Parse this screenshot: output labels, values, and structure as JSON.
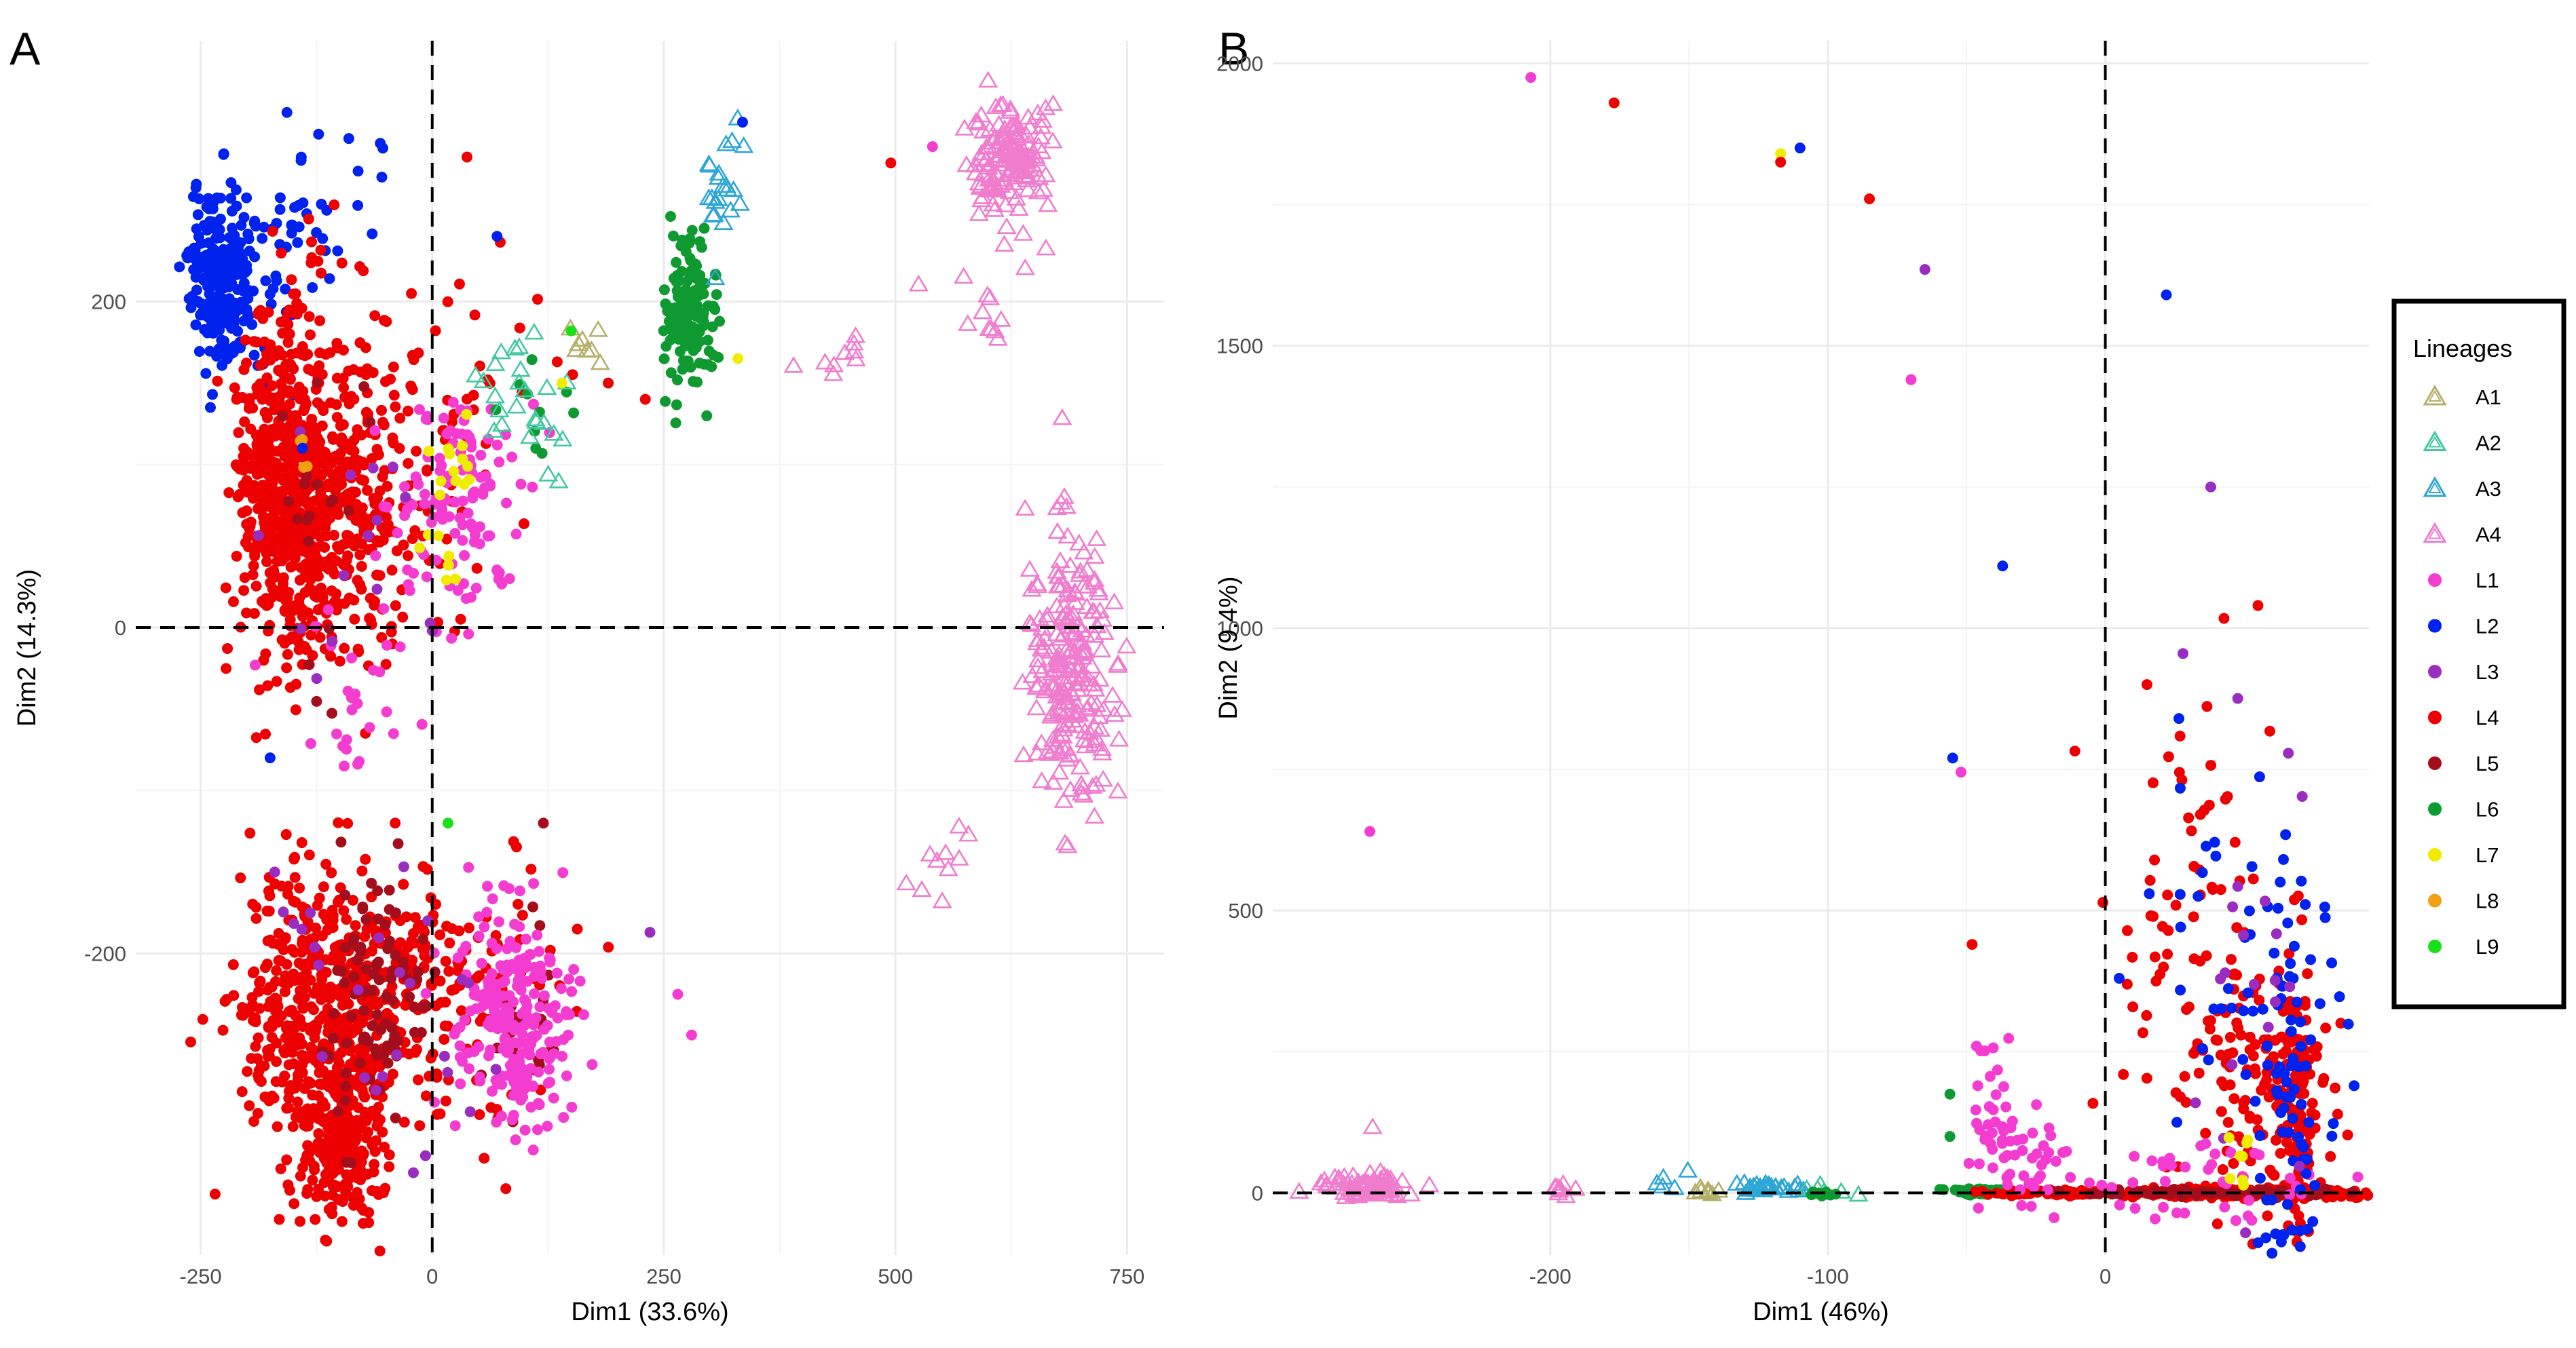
{
  "chart_data": [
    {
      "panel": "A",
      "type": "scatter",
      "xlabel": "Dim1 (33.6%)",
      "ylabel": "Dim2 (14.3%)",
      "xlim": [
        -320,
        790
      ],
      "ylim": [
        -385,
        360
      ],
      "xticks": [
        -250,
        0,
        250,
        500,
        750
      ],
      "yticks": [
        -200,
        0,
        200
      ],
      "xtick_labels": [
        "-250",
        "0",
        "250",
        "500",
        "750"
      ],
      "ytick_labels": [
        "-200",
        "0",
        "200"
      ],
      "reference_lines": {
        "x": 0,
        "y": 0
      },
      "clusters": [
        {
          "series": "L2",
          "cx": -225,
          "cy": 215,
          "sx": 18,
          "sy": 28,
          "n": 260
        },
        {
          "series": "L2",
          "cx": -140,
          "cy": 235,
          "sx": 40,
          "sy": 30,
          "n": 45
        },
        {
          "series": "L4",
          "cx": -160,
          "cy": 90,
          "sx": 26,
          "sy": 55,
          "n": 500
        },
        {
          "series": "L4",
          "cx": -110,
          "cy": 70,
          "sx": 40,
          "sy": 45,
          "n": 260
        },
        {
          "series": "L4",
          "cx": -60,
          "cy": 100,
          "sx": 45,
          "sy": 60,
          "n": 110
        },
        {
          "series": "L4",
          "cx": -130,
          "cy": -230,
          "sx": 40,
          "sy": 40,
          "n": 380
        },
        {
          "series": "L4",
          "cx": -100,
          "cy": -310,
          "sx": 25,
          "sy": 30,
          "n": 280
        },
        {
          "series": "L4",
          "cx": -40,
          "cy": -220,
          "sx": 40,
          "sy": 35,
          "n": 160
        },
        {
          "series": "L4",
          "cx": 70,
          "cy": -220,
          "sx": 40,
          "sy": 45,
          "n": 60
        },
        {
          "series": "L4",
          "cx": 30,
          "cy": 140,
          "sx": 60,
          "sy": 50,
          "n": 40
        },
        {
          "series": "L5",
          "cx": -60,
          "cy": -230,
          "sx": 25,
          "sy": 40,
          "n": 90
        },
        {
          "series": "L5",
          "cx": 100,
          "cy": -240,
          "sx": 25,
          "sy": 40,
          "n": 25
        },
        {
          "series": "L5",
          "cx": -120,
          "cy": 70,
          "sx": 30,
          "sy": 50,
          "n": 20
        },
        {
          "series": "L1",
          "cx": 90,
          "cy": -240,
          "sx": 30,
          "sy": 35,
          "n": 240
        },
        {
          "series": "L1",
          "cx": 30,
          "cy": 80,
          "sx": 35,
          "sy": 40,
          "n": 120
        },
        {
          "series": "L1",
          "cx": -90,
          "cy": -40,
          "sx": 30,
          "sy": 30,
          "n": 25
        },
        {
          "series": "L3",
          "cx": -50,
          "cy": -230,
          "sx": 60,
          "sy": 50,
          "n": 25
        },
        {
          "series": "L3",
          "cx": -90,
          "cy": 60,
          "sx": 50,
          "sy": 40,
          "n": 15
        },
        {
          "series": "L7",
          "cx": 20,
          "cy": 70,
          "sx": 10,
          "sy": 25,
          "n": 20
        },
        {
          "series": "L8",
          "cx": -140,
          "cy": 105,
          "sx": 3,
          "sy": 6,
          "n": 4
        },
        {
          "series": "L6",
          "cx": 275,
          "cy": 190,
          "sx": 15,
          "sy": 25,
          "n": 140
        },
        {
          "series": "L6",
          "cx": 120,
          "cy": 140,
          "sx": 40,
          "sy": 30,
          "n": 10
        },
        {
          "series": "A4",
          "cx": 625,
          "cy": 285,
          "sx": 22,
          "sy": 18,
          "n": 150
        },
        {
          "series": "A4",
          "cx": 690,
          "cy": -30,
          "sx": 22,
          "sy": 35,
          "n": 220
        },
        {
          "series": "A4",
          "cx": 600,
          "cy": 195,
          "sx": 15,
          "sy": 15,
          "n": 10
        },
        {
          "series": "A4",
          "cx": 445,
          "cy": 165,
          "sx": 12,
          "sy": 10,
          "n": 8
        },
        {
          "series": "A4",
          "cx": 545,
          "cy": -145,
          "sx": 20,
          "sy": 20,
          "n": 10
        },
        {
          "series": "A4",
          "cx": 675,
          "cy": 75,
          "sx": 5,
          "sy": 10,
          "n": 6
        },
        {
          "series": "A3",
          "cx": 310,
          "cy": 265,
          "sx": 12,
          "sy": 20,
          "n": 22
        },
        {
          "series": "A2",
          "cx": 95,
          "cy": 130,
          "sx": 25,
          "sy": 25,
          "n": 25
        },
        {
          "series": "A1",
          "cx": 160,
          "cy": 178,
          "sx": 15,
          "sy": 10,
          "n": 8
        }
      ],
      "points": [
        {
          "series": "L2",
          "x": -90,
          "y": 300
        },
        {
          "series": "L2",
          "x": 335,
          "y": 310
        },
        {
          "series": "L2",
          "x": 70,
          "y": 240
        },
        {
          "series": "L2",
          "x": -175,
          "y": -80
        },
        {
          "series": "L2",
          "x": -140,
          "y": 110
        },
        {
          "series": "L2",
          "x": -80,
          "y": 280
        },
        {
          "series": "L4",
          "x": 495,
          "y": 285
        },
        {
          "series": "L4",
          "x": 190,
          "y": 150
        },
        {
          "series": "L4",
          "x": 230,
          "y": 140
        },
        {
          "series": "L4",
          "x": -40,
          "y": -120
        },
        {
          "series": "L1",
          "x": 540,
          "y": 295
        },
        {
          "series": "L1",
          "x": 265,
          "y": -225
        },
        {
          "series": "L1",
          "x": 280,
          "y": -250
        },
        {
          "series": "L1",
          "x": -95,
          "y": -85
        },
        {
          "series": "L3",
          "x": 235,
          "y": -187
        },
        {
          "series": "L3",
          "x": -170,
          "y": -150
        },
        {
          "series": "L7",
          "x": 330,
          "y": 165
        },
        {
          "series": "L7",
          "x": 140,
          "y": 150
        },
        {
          "series": "L9",
          "x": 150,
          "y": 182
        },
        {
          "series": "L9",
          "x": 17,
          "y": -120
        },
        {
          "series": "L5",
          "x": 120,
          "y": -120
        },
        {
          "series": "A4",
          "x": 600,
          "y": 335
        },
        {
          "series": "A4",
          "x": 525,
          "y": 210
        },
        {
          "series": "A4",
          "x": 390,
          "y": 160
        },
        {
          "series": "A4",
          "x": 680,
          "y": 128
        },
        {
          "series": "A4",
          "x": 640,
          "y": 220
        },
        {
          "series": "A4",
          "x": 645,
          "y": 35
        }
      ]
    },
    {
      "panel": "B",
      "type": "scatter",
      "xlabel": "Dim1 (46%)",
      "ylabel": "Dim2 (9.4%)",
      "xlim": [
        -300,
        95
      ],
      "ylim": [
        -110,
        2040
      ],
      "xticks": [
        -200,
        -100,
        0
      ],
      "yticks": [
        0,
        500,
        1000,
        1500,
        2000
      ],
      "xtick_labels": [
        "-200",
        "-100",
        "0"
      ],
      "ytick_labels": [
        "0",
        "500",
        "1000",
        "1500",
        "2000"
      ],
      "reference_lines": {
        "x": 0,
        "y": 0
      },
      "clusters": [
        {
          "series": "A4",
          "cx": -265,
          "cy": 8,
          "sx": 7,
          "sy": 10,
          "n": 90
        },
        {
          "series": "A4",
          "cx": -198,
          "cy": 8,
          "sx": 3,
          "sy": 5,
          "n": 10
        },
        {
          "series": "A3",
          "cx": -122,
          "cy": 8,
          "sx": 6,
          "sy": 5,
          "n": 30
        },
        {
          "series": "A3",
          "cx": -157,
          "cy": 15,
          "sx": 3,
          "sy": 10,
          "n": 5
        },
        {
          "series": "A1",
          "cx": -143,
          "cy": 3,
          "sx": 2,
          "sy": 3,
          "n": 8
        },
        {
          "series": "A2",
          "cx": -100,
          "cy": 5,
          "sx": 10,
          "sy": 5,
          "n": 6
        },
        {
          "series": "L6",
          "cx": -45,
          "cy": 2,
          "sx": 6,
          "sy": 3,
          "n": 50
        },
        {
          "series": "L6",
          "cx": -100,
          "cy": 0,
          "sx": 3,
          "sy": 2,
          "n": 8
        },
        {
          "series": "L4",
          "cx": -15,
          "cy": 0,
          "sx": 15,
          "sy": 3,
          "n": 80
        },
        {
          "series": "L4",
          "cx": 50,
          "cy": 0,
          "sx": 20,
          "sy": 4,
          "n": 300
        },
        {
          "series": "L4",
          "cx": 60,
          "cy": 150,
          "sx": 12,
          "sy": 120,
          "n": 150
        },
        {
          "series": "L4",
          "cx": 30,
          "cy": 450,
          "sx": 15,
          "sy": 200,
          "n": 80
        },
        {
          "series": "L4",
          "cx": 70,
          "cy": 120,
          "sx": 3,
          "sy": 150,
          "n": 80
        },
        {
          "series": "L5",
          "cx": 40,
          "cy": 0,
          "sx": 25,
          "sy": 3,
          "n": 80
        },
        {
          "series": "L1",
          "cx": -40,
          "cy": 110,
          "sx": 5,
          "sy": 80,
          "n": 40
        },
        {
          "series": "L1",
          "cx": -25,
          "cy": 60,
          "sx": 6,
          "sy": 45,
          "n": 30
        },
        {
          "series": "L1",
          "cx": 35,
          "cy": 30,
          "sx": 25,
          "sy": 40,
          "n": 40
        },
        {
          "series": "L2",
          "cx": 65,
          "cy": 200,
          "sx": 8,
          "sy": 180,
          "n": 90
        },
        {
          "series": "L2",
          "cx": 40,
          "cy": 450,
          "sx": 15,
          "sy": 200,
          "n": 25
        },
        {
          "series": "L3",
          "cx": 55,
          "cy": 350,
          "sx": 10,
          "sy": 200,
          "n": 20
        },
        {
          "series": "L7",
          "cx": 48,
          "cy": 55,
          "sx": 3,
          "sy": 20,
          "n": 8
        }
      ],
      "points": [
        {
          "series": "L1",
          "x": -207,
          "y": 1975
        },
        {
          "series": "L4",
          "x": -177,
          "y": 1930
        },
        {
          "series": "L7",
          "x": -117,
          "y": 1840
        },
        {
          "series": "L4",
          "x": -117,
          "y": 1825
        },
        {
          "series": "L2",
          "x": -110,
          "y": 1850
        },
        {
          "series": "L4",
          "x": -85,
          "y": 1760
        },
        {
          "series": "L3",
          "x": -65,
          "y": 1635
        },
        {
          "series": "L1",
          "x": -70,
          "y": 1440
        },
        {
          "series": "L2",
          "x": 22,
          "y": 1590
        },
        {
          "series": "L3",
          "x": 38,
          "y": 1250
        },
        {
          "series": "L2",
          "x": -37,
          "y": 1110
        },
        {
          "series": "L4",
          "x": 55,
          "y": 1040
        },
        {
          "series": "L3",
          "x": 28,
          "y": 955
        },
        {
          "series": "L2",
          "x": -55,
          "y": 770
        },
        {
          "series": "L1",
          "x": -52,
          "y": 745
        },
        {
          "series": "L1",
          "x": -265,
          "y": 640
        },
        {
          "series": "L4",
          "x": -48,
          "y": 440
        },
        {
          "series": "L6",
          "x": -56,
          "y": 175
        },
        {
          "series": "L6",
          "x": -56,
          "y": 100
        },
        {
          "series": "L2",
          "x": 5,
          "y": 380
        },
        {
          "series": "L4",
          "x": 15,
          "y": 900
        },
        {
          "series": "A4",
          "x": -264,
          "y": 115
        }
      ]
    }
  ],
  "panels": {
    "A": {
      "letter": "A"
    },
    "B": {
      "letter": "B"
    }
  },
  "legend": {
    "title": "Lineages",
    "items": [
      {
        "name": "A1",
        "shape": "triangle",
        "color": "#b5b069"
      },
      {
        "name": "A2",
        "shape": "triangle",
        "color": "#43c8a0"
      },
      {
        "name": "A3",
        "shape": "triangle",
        "color": "#2ea6d6"
      },
      {
        "name": "A4",
        "shape": "triangle",
        "color": "#f07cce"
      },
      {
        "name": "L1",
        "shape": "circle",
        "color": "#f43cd0"
      },
      {
        "name": "L2",
        "shape": "circle",
        "color": "#0022ee"
      },
      {
        "name": "L3",
        "shape": "circle",
        "color": "#9a2cc0"
      },
      {
        "name": "L4",
        "shape": "circle",
        "color": "#ee0000"
      },
      {
        "name": "L5",
        "shape": "circle",
        "color": "#a40e1c"
      },
      {
        "name": "L6",
        "shape": "circle",
        "color": "#0e9a30"
      },
      {
        "name": "L7",
        "shape": "circle",
        "color": "#f0ec00"
      },
      {
        "name": "L8",
        "shape": "circle",
        "color": "#f0a010"
      },
      {
        "name": "L9",
        "shape": "circle",
        "color": "#1ae01a"
      }
    ]
  }
}
